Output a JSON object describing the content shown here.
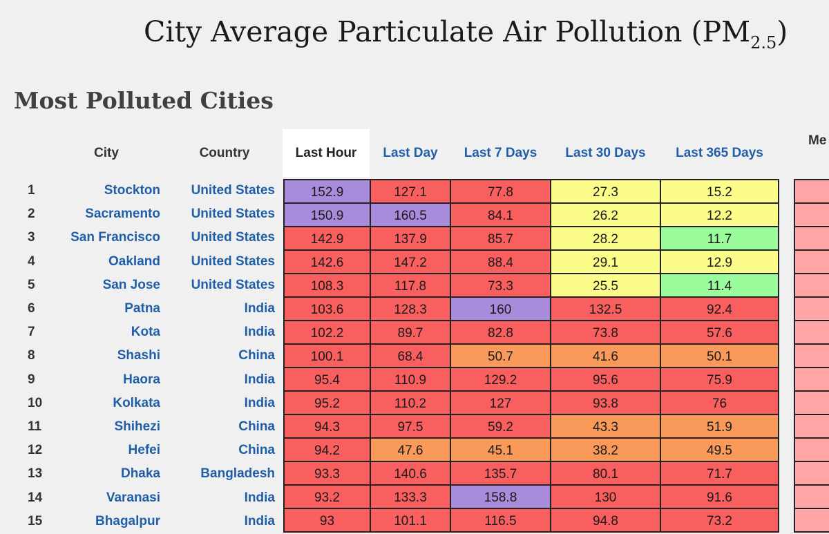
{
  "page": {
    "title_main": "City Average Particulate Air Pollution (PM",
    "title_sub": "2.5",
    "title_end": ")",
    "section_title": "Most Polluted Cities"
  },
  "columns": {
    "city": "City",
    "country": "Country",
    "last_hour": "Last Hour",
    "last_day": "Last Day",
    "last_7": "Last 7 Days",
    "last_30": "Last 30 Days",
    "last_365": "Last 365 Days",
    "cut_off": "Me"
  },
  "colors": {
    "purple": "#a98bdc",
    "red": "#fa5f5f",
    "orange": "#fa9a5a",
    "yellow": "#fcfc8a",
    "green": "#9afc9a",
    "extra": "#ffa5a5",
    "link": "#1f5ea8"
  },
  "rows": [
    {
      "rank": "1",
      "city": "Stockton",
      "country": "United States",
      "values": [
        "152.9",
        "127.1",
        "77.8",
        "27.3",
        "15.2"
      ],
      "colors": [
        "purple",
        "red",
        "red",
        "yellow",
        "yellow"
      ]
    },
    {
      "rank": "2",
      "city": "Sacramento",
      "country": "United States",
      "values": [
        "150.9",
        "160.5",
        "84.1",
        "26.2",
        "12.2"
      ],
      "colors": [
        "purple",
        "purple",
        "red",
        "yellow",
        "yellow"
      ]
    },
    {
      "rank": "3",
      "city": "San Francisco",
      "country": "United States",
      "values": [
        "142.9",
        "137.9",
        "85.7",
        "28.2",
        "11.7"
      ],
      "colors": [
        "red",
        "red",
        "red",
        "yellow",
        "green"
      ]
    },
    {
      "rank": "4",
      "city": "Oakland",
      "country": "United States",
      "values": [
        "142.6",
        "147.2",
        "88.4",
        "29.1",
        "12.9"
      ],
      "colors": [
        "red",
        "red",
        "red",
        "yellow",
        "yellow"
      ]
    },
    {
      "rank": "5",
      "city": "San Jose",
      "country": "United States",
      "values": [
        "108.3",
        "117.8",
        "73.3",
        "25.5",
        "11.4"
      ],
      "colors": [
        "red",
        "red",
        "red",
        "yellow",
        "green"
      ]
    },
    {
      "rank": "6",
      "city": "Patna",
      "country": "India",
      "values": [
        "103.6",
        "128.3",
        "160",
        "132.5",
        "92.4"
      ],
      "colors": [
        "red",
        "red",
        "purple",
        "red",
        "red"
      ]
    },
    {
      "rank": "7",
      "city": "Kota",
      "country": "India",
      "values": [
        "102.2",
        "89.7",
        "82.8",
        "73.8",
        "57.6"
      ],
      "colors": [
        "red",
        "red",
        "red",
        "red",
        "red"
      ]
    },
    {
      "rank": "8",
      "city": "Shashi",
      "country": "China",
      "values": [
        "100.1",
        "68.4",
        "50.7",
        "41.6",
        "50.1"
      ],
      "colors": [
        "red",
        "red",
        "orange",
        "orange",
        "orange"
      ]
    },
    {
      "rank": "9",
      "city": "Haora",
      "country": "India",
      "values": [
        "95.4",
        "110.9",
        "129.2",
        "95.6",
        "75.9"
      ],
      "colors": [
        "red",
        "red",
        "red",
        "red",
        "red"
      ]
    },
    {
      "rank": "10",
      "city": "Kolkata",
      "country": "India",
      "values": [
        "95.2",
        "110.2",
        "127",
        "93.8",
        "76"
      ],
      "colors": [
        "red",
        "red",
        "red",
        "red",
        "red"
      ]
    },
    {
      "rank": "11",
      "city": "Shihezi",
      "country": "China",
      "values": [
        "94.3",
        "97.5",
        "59.2",
        "43.3",
        "51.9"
      ],
      "colors": [
        "red",
        "red",
        "red",
        "orange",
        "orange"
      ]
    },
    {
      "rank": "12",
      "city": "Hefei",
      "country": "China",
      "values": [
        "94.2",
        "47.6",
        "45.1",
        "38.2",
        "49.5"
      ],
      "colors": [
        "red",
        "orange",
        "orange",
        "orange",
        "orange"
      ]
    },
    {
      "rank": "13",
      "city": "Dhaka",
      "country": "Bangladesh",
      "values": [
        "93.3",
        "140.6",
        "135.7",
        "80.1",
        "71.7"
      ],
      "colors": [
        "red",
        "red",
        "red",
        "red",
        "red"
      ]
    },
    {
      "rank": "14",
      "city": "Varanasi",
      "country": "India",
      "values": [
        "93.2",
        "133.3",
        "158.8",
        "130",
        "91.6"
      ],
      "colors": [
        "red",
        "red",
        "purple",
        "red",
        "red"
      ]
    },
    {
      "rank": "15",
      "city": "Bhagalpur",
      "country": "India",
      "values": [
        "93",
        "101.1",
        "116.5",
        "94.8",
        "73.2"
      ],
      "colors": [
        "red",
        "red",
        "red",
        "red",
        "red"
      ]
    }
  ]
}
